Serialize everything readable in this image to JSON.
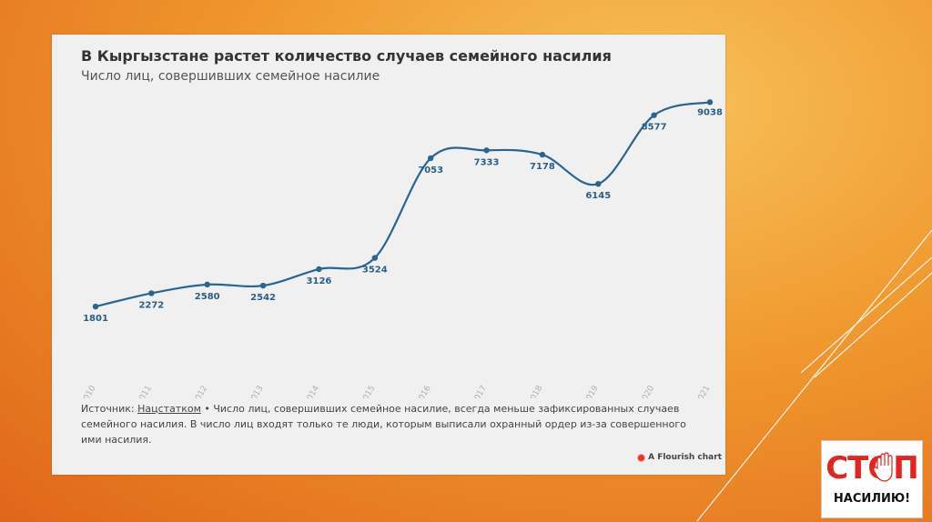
{
  "slide": {
    "accent_line_color": "#ffffff"
  },
  "card": {
    "title": "В Кыргызстане растет количество случаев семейного насилия",
    "subtitle": "Число лиц, совершивших семейное насилие",
    "source_label": "Источник: ",
    "source_link": "Нацстатком",
    "source_text": " • Число лиц, совершивших семейное насилие, всегда меньше зафиксированных случаев семейного насилия. В число лиц входят только те люди, которым выписали охранный ордер из-за совершенного ими насилия.",
    "flourish_label": "A Flourish chart"
  },
  "chart_data": {
    "type": "line",
    "title": "В Кыргызстане растет количество случаев семейного насилия",
    "subtitle": "Число лиц, совершивших семейное насилие",
    "x": [
      "2010",
      "2011",
      "2012",
      "2013",
      "2014",
      "2015",
      "2016",
      "2017",
      "2018",
      "2019",
      "2020",
      "2021"
    ],
    "series": [
      {
        "values": [
          1801,
          2272,
          2580,
          2542,
          3126,
          3524,
          7053,
          7333,
          7178,
          6145,
          8577,
          9038
        ]
      }
    ],
    "data_labels": [
      "1801",
      "2272",
      "2580",
      "2542",
      "3126",
      "3524",
      "7053",
      "7333",
      "7178",
      "6145",
      "8577",
      "9038"
    ],
    "line_color": "#2a6590",
    "label_color": "#2a5f85",
    "ylim": [
      0,
      9500
    ],
    "grid": false,
    "legend": "none"
  },
  "logo": {
    "word": "СТОП",
    "sub": "НАСИЛИЮ!",
    "color": "#e0261f"
  }
}
